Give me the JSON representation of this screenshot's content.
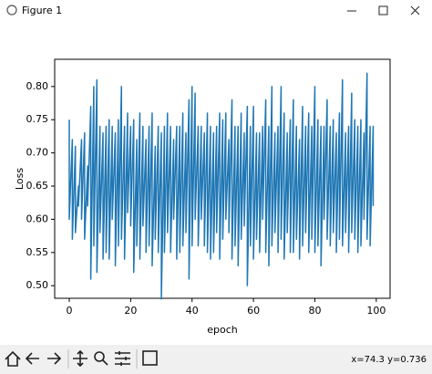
{
  "window": {
    "title": "Figure 1",
    "status": "x=74.3 y=0.736"
  },
  "chart_data": {
    "type": "line",
    "xlabel": "epoch",
    "ylabel": "Loss",
    "color": "#1f77b4",
    "xlim": [
      -4.75,
      104.5
    ],
    "ylim": [
      0.481,
      0.841
    ],
    "xticks": [
      0,
      20,
      40,
      60,
      80,
      100
    ],
    "yticks": [
      {
        "value": 0.5,
        "label": "0.50"
      },
      {
        "value": 0.55,
        "label": "0.55"
      },
      {
        "value": 0.6,
        "label": "0.60"
      },
      {
        "value": 0.65,
        "label": "0.65"
      },
      {
        "value": 0.7,
        "label": "0.70"
      },
      {
        "value": 0.75,
        "label": "0.75"
      },
      {
        "value": 0.8,
        "label": "0.80"
      }
    ],
    "x": [
      0,
      0,
      1,
      1,
      2,
      2,
      3,
      3,
      4,
      4,
      5,
      5,
      6,
      6,
      7,
      7,
      8,
      8,
      9,
      9,
      10,
      10,
      11,
      11,
      12,
      12,
      13,
      13,
      14,
      14,
      15,
      15,
      16,
      16,
      17,
      17,
      18,
      18,
      19,
      19,
      20,
      20,
      21,
      21,
      22,
      22,
      23,
      23,
      24,
      24,
      25,
      25,
      26,
      26,
      27,
      27,
      28,
      28,
      29,
      29,
      30,
      30,
      31,
      31,
      32,
      32,
      33,
      33,
      34,
      34,
      35,
      35,
      36,
      36,
      37,
      37,
      38,
      38,
      39,
      39,
      40,
      40,
      41,
      41,
      42,
      42,
      43,
      43,
      44,
      44,
      45,
      45,
      46,
      46,
      47,
      47,
      48,
      48,
      49,
      49,
      50,
      50,
      51,
      51,
      52,
      52,
      53,
      53,
      54,
      54,
      55,
      55,
      56,
      56,
      57,
      57,
      58,
      58,
      59,
      59,
      60,
      60,
      61,
      61,
      62,
      62,
      63,
      63,
      64,
      64,
      65,
      65,
      66,
      66,
      67,
      67,
      68,
      68,
      69,
      69,
      70,
      70,
      71,
      71,
      72,
      72,
      73,
      73,
      74,
      74,
      75,
      75,
      76,
      76,
      77,
      77,
      78,
      78,
      79,
      79,
      80,
      80,
      81,
      81,
      82,
      82,
      83,
      83,
      84,
      84,
      85,
      85,
      86,
      86,
      87,
      87,
      88,
      88,
      89,
      89,
      90,
      90,
      91,
      91,
      92,
      92,
      93,
      93,
      94,
      94,
      95,
      95,
      96,
      96,
      97,
      97,
      98,
      98,
      99,
      99
    ],
    "values": [
      0.75,
      0.6,
      0.72,
      0.57,
      0.71,
      0.58,
      0.65,
      0.62,
      0.72,
      0.6,
      0.73,
      0.57,
      0.68,
      0.62,
      0.77,
      0.51,
      0.8,
      0.56,
      0.81,
      0.52,
      0.74,
      0.58,
      0.73,
      0.54,
      0.74,
      0.55,
      0.75,
      0.54,
      0.74,
      0.6,
      0.73,
      0.53,
      0.75,
      0.56,
      0.8,
      0.57,
      0.74,
      0.54,
      0.76,
      0.61,
      0.74,
      0.59,
      0.75,
      0.52,
      0.72,
      0.56,
      0.76,
      0.54,
      0.74,
      0.59,
      0.72,
      0.55,
      0.74,
      0.56,
      0.76,
      0.53,
      0.71,
      0.57,
      0.74,
      0.55,
      0.73,
      0.48,
      0.74,
      0.55,
      0.76,
      0.58,
      0.74,
      0.55,
      0.72,
      0.6,
      0.74,
      0.54,
      0.74,
      0.55,
      0.76,
      0.56,
      0.73,
      0.58,
      0.78,
      0.51,
      0.8,
      0.56,
      0.79,
      0.6,
      0.74,
      0.56,
      0.74,
      0.6,
      0.73,
      0.56,
      0.76,
      0.55,
      0.74,
      0.54,
      0.73,
      0.55,
      0.74,
      0.58,
      0.76,
      0.54,
      0.75,
      0.57,
      0.76,
      0.6,
      0.72,
      0.58,
      0.78,
      0.54,
      0.74,
      0.56,
      0.74,
      0.53,
      0.76,
      0.57,
      0.73,
      0.59,
      0.77,
      0.5,
      0.74,
      0.56,
      0.77,
      0.54,
      0.73,
      0.57,
      0.73,
      0.55,
      0.74,
      0.6,
      0.78,
      0.55,
      0.74,
      0.53,
      0.8,
      0.56,
      0.73,
      0.58,
      0.74,
      0.55,
      0.8,
      0.57,
      0.76,
      0.54,
      0.73,
      0.58,
      0.75,
      0.55,
      0.78,
      0.55,
      0.74,
      0.57,
      0.72,
      0.54,
      0.77,
      0.56,
      0.74,
      0.58,
      0.76,
      0.55,
      0.74,
      0.57,
      0.8,
      0.55,
      0.75,
      0.56,
      0.74,
      0.53,
      0.74,
      0.6,
      0.78,
      0.57,
      0.74,
      0.56,
      0.75,
      0.58,
      0.73,
      0.55,
      0.76,
      0.57,
      0.81,
      0.56,
      0.73,
      0.58,
      0.74,
      0.55,
      0.79,
      0.58,
      0.75,
      0.57,
      0.74,
      0.55,
      0.75,
      0.56,
      0.73,
      0.6,
      0.82,
      0.57,
      0.74,
      0.56,
      0.74,
      0.62
    ]
  }
}
